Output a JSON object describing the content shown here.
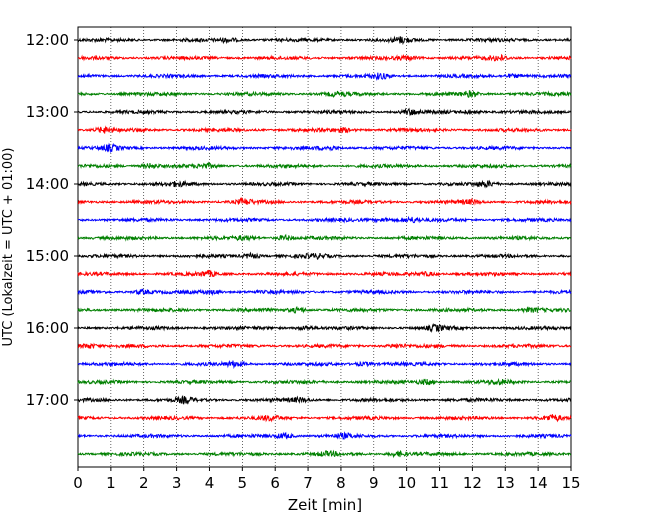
{
  "chart_data": {
    "type": "line",
    "title": "",
    "xlabel": "Zeit  [min]",
    "ylabel": "UTC (Lokalzeit = UTC + 01:00)",
    "xlim": [
      0,
      15
    ],
    "x_ticks": [
      "0",
      "1",
      "2",
      "3",
      "4",
      "5",
      "6",
      "7",
      "8",
      "9",
      "10",
      "11",
      "12",
      "13",
      "14",
      "15"
    ],
    "y_tick_labels": [
      "12:00",
      "13:00",
      "14:00",
      "15:00",
      "16:00",
      "17:00"
    ],
    "grid": "vertical dotted",
    "trace_colors": [
      "#000000",
      "#ff0000",
      "#0000ff",
      "#008000"
    ],
    "trace_start_times": [
      "12:00",
      "12:15",
      "12:30",
      "12:45",
      "13:00",
      "13:15",
      "13:30",
      "13:45",
      "14:00",
      "14:15",
      "14:30",
      "14:45",
      "15:00",
      "15:15",
      "15:30",
      "15:45",
      "16:00",
      "16:15",
      "16:30",
      "16:45",
      "17:00",
      "17:15",
      "17:30",
      "17:45"
    ],
    "trace_duration_min": 15
  }
}
